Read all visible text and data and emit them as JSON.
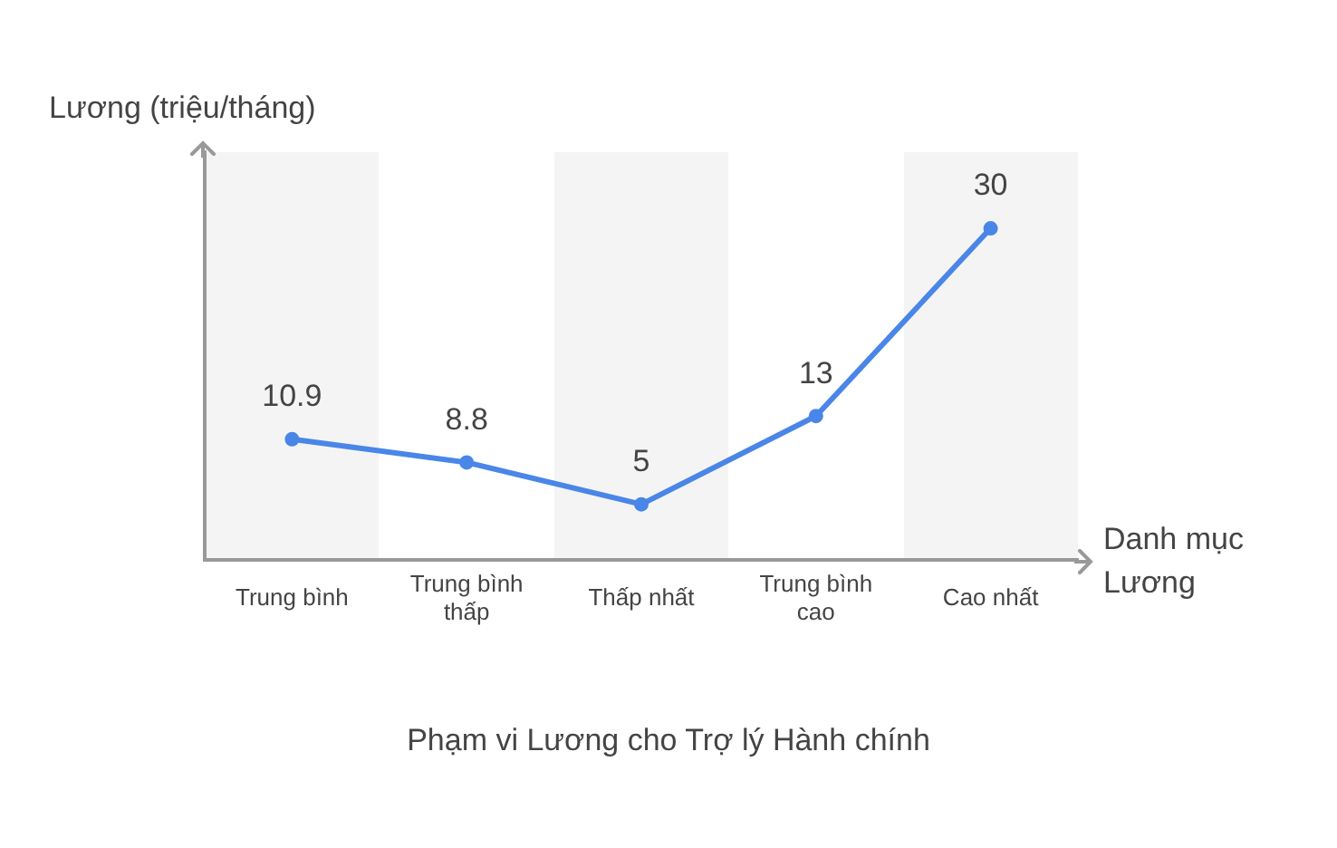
{
  "chart_data": {
    "type": "line",
    "title": "Phạm vi Lương cho Trợ lý Hành chính",
    "xlabel": "Danh mục Lương",
    "ylabel": "Lương (triệu/tháng)",
    "categories": [
      "Trung bình",
      "Trung bình thấp",
      "Thấp nhất",
      "Trung bình cao",
      "Cao nhất"
    ],
    "series": [
      {
        "color": "#4a86e8",
        "values": [
          10.9,
          8.8,
          5,
          13,
          30
        ]
      }
    ],
    "data_labels": true,
    "marker": "circle",
    "line_style": "solid",
    "grid": false,
    "legend": false,
    "tick_labels": "x"
  }
}
